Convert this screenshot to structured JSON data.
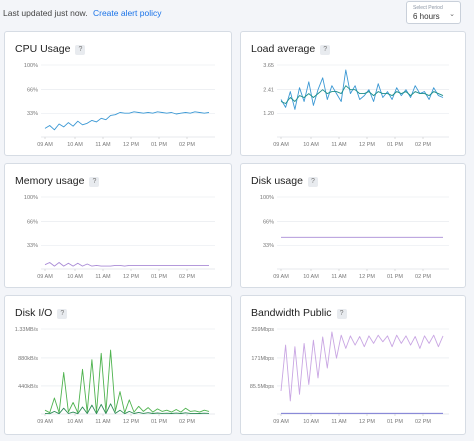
{
  "header": {
    "updated_text": "Last updated just now.",
    "alert_link": "Create alert policy",
    "period_label": "Select Period",
    "period_value": "6 hours"
  },
  "time_ticks": [
    "09 AM",
    "10 AM",
    "11 AM",
    "12 PM",
    "01 PM",
    "02 PM"
  ],
  "colors": {
    "blue": "#3b98d4",
    "teal": "#1c8f8a",
    "purple": "#a98bd6",
    "green": "#4fb34f",
    "grid": "#e3e7ec"
  },
  "cards": [
    {
      "id": "cpu",
      "title": "CPU Usage",
      "help": "?",
      "y_ticks": [
        "100%",
        "66%",
        "33%"
      ]
    },
    {
      "id": "load",
      "title": "Load average",
      "help": "?",
      "y_ticks": [
        "3.65",
        "2.41",
        "1.20"
      ]
    },
    {
      "id": "memory",
      "title": "Memory usage",
      "help": "?",
      "y_ticks": [
        "100%",
        "66%",
        "33%"
      ]
    },
    {
      "id": "disk",
      "title": "Disk usage",
      "help": "?",
      "y_ticks": [
        "100%",
        "66%",
        "33%"
      ]
    },
    {
      "id": "diskio",
      "title": "Disk I/O",
      "help": "?",
      "y_ticks": [
        "1.33MB/s",
        "880kB/s",
        "440kB/s"
      ]
    },
    {
      "id": "bandwidth",
      "title": "Bandwidth Public",
      "help": "?",
      "y_ticks": [
        "259Mbps",
        "171Mbps",
        "85.5Mbps"
      ]
    }
  ],
  "chart_data": [
    {
      "type": "line",
      "title": "CPU Usage",
      "ylim": [
        0,
        100
      ],
      "unit": "%",
      "series": [
        {
          "color": "#3b98d4",
          "values": [
            12,
            16,
            10,
            18,
            14,
            20,
            15,
            22,
            17,
            19,
            23,
            21,
            26,
            24,
            30,
            31,
            34,
            33,
            33,
            35,
            34,
            33,
            34,
            33,
            35,
            34,
            33,
            34,
            32,
            33,
            34,
            33,
            35,
            34,
            33,
            34
          ]
        }
      ]
    },
    {
      "type": "line",
      "title": "Load average",
      "ylim": [
        0,
        3.65
      ],
      "series": [
        {
          "color": "#3b98d4",
          "values": [
            1.9,
            1.5,
            2.3,
            1.4,
            2.5,
            1.8,
            2.8,
            1.6,
            2.4,
            3.0,
            1.9,
            2.6,
            2.2,
            1.8,
            3.4,
            2.2,
            2.6,
            1.9,
            2.1,
            2.4,
            1.8,
            2.7,
            2.0,
            2.3,
            1.9,
            2.5,
            2.1,
            2.4,
            2.0,
            2.6,
            2.2,
            2.3,
            1.9,
            2.5,
            2.1,
            2.0
          ]
        },
        {
          "color": "#1c8f8a",
          "values": [
            1.8,
            1.7,
            2.0,
            1.8,
            2.1,
            2.0,
            2.2,
            2.0,
            2.2,
            2.4,
            2.2,
            2.3,
            2.3,
            2.2,
            2.6,
            2.4,
            2.4,
            2.2,
            2.2,
            2.3,
            2.1,
            2.3,
            2.2,
            2.2,
            2.1,
            2.3,
            2.2,
            2.3,
            2.1,
            2.3,
            2.2,
            2.2,
            2.1,
            2.3,
            2.2,
            2.1
          ]
        }
      ]
    },
    {
      "type": "line",
      "title": "Memory usage",
      "ylim": [
        0,
        100
      ],
      "unit": "%",
      "series": [
        {
          "color": "#a98bd6",
          "values": [
            6,
            9,
            4,
            9,
            4,
            8,
            4,
            8,
            4,
            7,
            4,
            5,
            4,
            4,
            4,
            5,
            5,
            4,
            5,
            5,
            5,
            5,
            5,
            5,
            5,
            5,
            5,
            5,
            5,
            5,
            5,
            5,
            5,
            5,
            5,
            5
          ]
        }
      ]
    },
    {
      "type": "line",
      "title": "Disk usage",
      "ylim": [
        0,
        100
      ],
      "unit": "%",
      "series": [
        {
          "color": "#a98bd6",
          "values": [
            44,
            44,
            44,
            44,
            44,
            44,
            44,
            44,
            44,
            44,
            44,
            44,
            44,
            44,
            44,
            44,
            44,
            44,
            44,
            44,
            44,
            44,
            44,
            44,
            44,
            44,
            44,
            44,
            44,
            44,
            44,
            44,
            44,
            44,
            44,
            44
          ]
        }
      ]
    },
    {
      "type": "line",
      "title": "Disk I/O",
      "ylim": [
        0,
        1330
      ],
      "unit": "kB/s",
      "series": [
        {
          "color": "#4fb34f",
          "values": [
            60,
            20,
            250,
            20,
            650,
            30,
            180,
            20,
            700,
            30,
            850,
            20,
            950,
            30,
            1000,
            40,
            350,
            20,
            220,
            30,
            120,
            40,
            100,
            30,
            80,
            40,
            60,
            30,
            70,
            30,
            90,
            40,
            50,
            30,
            60,
            40
          ]
        },
        {
          "color": "#2e8b57",
          "values": [
            10,
            5,
            40,
            5,
            90,
            8,
            30,
            5,
            110,
            8,
            140,
            5,
            150,
            8,
            160,
            10,
            60,
            5,
            40,
            8,
            25,
            10,
            20,
            8,
            15,
            10,
            12,
            8,
            14,
            8,
            18,
            10,
            10,
            8,
            12,
            10
          ]
        }
      ]
    },
    {
      "type": "line",
      "title": "Bandwidth Public",
      "ylim": [
        0,
        259
      ],
      "unit": "Mbps",
      "series": [
        {
          "color": "#c9a6e3",
          "values": [
            70,
            210,
            40,
            205,
            60,
            215,
            90,
            225,
            110,
            235,
            140,
            250,
            170,
            240,
            200,
            238,
            210,
            236,
            205,
            238,
            215,
            240,
            220,
            238,
            205,
            240,
            215,
            238,
            210,
            236,
            200,
            238,
            215,
            240,
            205,
            238
          ]
        },
        {
          "color": "#6b6bd0",
          "values": [
            2,
            2,
            2,
            2,
            2,
            2,
            2,
            2,
            2,
            2,
            2,
            2,
            2,
            2,
            2,
            2,
            2,
            2,
            2,
            2,
            2,
            2,
            2,
            2,
            2,
            2,
            2,
            2,
            2,
            2,
            2,
            2,
            2,
            2,
            2,
            2
          ]
        }
      ]
    }
  ]
}
